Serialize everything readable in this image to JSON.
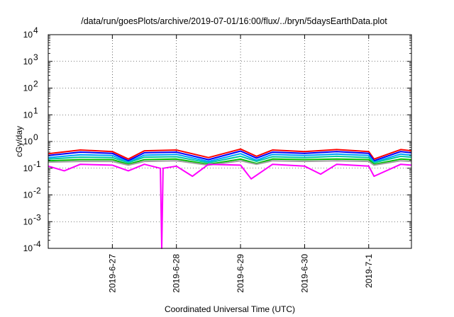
{
  "chart_data": {
    "type": "line",
    "title": "/data/run/goesPlots/archive/2019-07-01/16:00/flux/../bryn/5daysEarthData.plot",
    "xlabel": "Coordinated Universal Time (UTC)",
    "ylabel": "cGy/day",
    "yscale": "log",
    "ylim": [
      0.0001,
      10000
    ],
    "y_ticks": [
      {
        "base": "10",
        "exp": "4"
      },
      {
        "base": "10",
        "exp": "3"
      },
      {
        "base": "10",
        "exp": "2"
      },
      {
        "base": "10",
        "exp": "1"
      },
      {
        "base": "10",
        "exp": "0"
      },
      {
        "base": "10",
        "exp": "-1"
      },
      {
        "base": "10",
        "exp": "-2"
      },
      {
        "base": "10",
        "exp": "-3"
      },
      {
        "base": "10",
        "exp": "-4"
      }
    ],
    "xlim": [
      "2019-06-26T00:00",
      "2019-07-01T16:00"
    ],
    "x_ticks": [
      "2019-6-27",
      "2019-6-28",
      "2019-6-29",
      "2019-6-30",
      "2019-7-1"
    ],
    "grid": true,
    "legend": "none",
    "series_colors": [
      "#ff0000",
      "#0000ff",
      "#00a0ff",
      "#00c8a0",
      "#00c000",
      "#a0a0a0",
      "#ff00ff"
    ],
    "series": [
      {
        "color": "#ff0000",
        "x": [
          "2019-06-26T00:00",
          "2019-06-26T12:00",
          "2019-06-27T00:00",
          "2019-06-27T06:00",
          "2019-06-27T12:00",
          "2019-06-28T00:00",
          "2019-06-28T12:00",
          "2019-06-29T00:00",
          "2019-06-29T06:00",
          "2019-06-29T12:00",
          "2019-06-30T00:00",
          "2019-06-30T12:00",
          "2019-07-01T00:00",
          "2019-07-01T02:00",
          "2019-07-01T12:00",
          "2019-07-01T16:00"
        ],
        "y": [
          0.35,
          0.48,
          0.42,
          0.22,
          0.45,
          0.48,
          0.25,
          0.52,
          0.28,
          0.48,
          0.42,
          0.5,
          0.42,
          0.22,
          0.5,
          0.45
        ]
      },
      {
        "color": "#0000ff",
        "x": [
          "2019-06-26T00:00",
          "2019-06-26T12:00",
          "2019-06-27T00:00",
          "2019-06-27T06:00",
          "2019-06-27T12:00",
          "2019-06-28T00:00",
          "2019-06-28T12:00",
          "2019-06-29T00:00",
          "2019-06-29T06:00",
          "2019-06-29T12:00",
          "2019-06-30T00:00",
          "2019-06-30T12:00",
          "2019-07-01T00:00",
          "2019-07-01T02:00",
          "2019-07-01T12:00",
          "2019-07-01T16:00"
        ],
        "y": [
          0.3,
          0.4,
          0.36,
          0.19,
          0.38,
          0.4,
          0.21,
          0.44,
          0.24,
          0.4,
          0.36,
          0.42,
          0.36,
          0.19,
          0.42,
          0.38
        ]
      },
      {
        "color": "#00a0ff",
        "x": [
          "2019-06-26T00:00",
          "2019-06-26T12:00",
          "2019-06-27T00:00",
          "2019-06-27T06:00",
          "2019-06-27T12:00",
          "2019-06-28T00:00",
          "2019-06-28T12:00",
          "2019-06-29T00:00",
          "2019-06-29T06:00",
          "2019-06-29T12:00",
          "2019-06-30T00:00",
          "2019-06-30T12:00",
          "2019-07-01T00:00",
          "2019-07-01T02:00",
          "2019-07-01T12:00",
          "2019-07-01T16:00"
        ],
        "y": [
          0.25,
          0.32,
          0.3,
          0.17,
          0.31,
          0.33,
          0.18,
          0.35,
          0.2,
          0.33,
          0.3,
          0.34,
          0.3,
          0.17,
          0.34,
          0.31
        ]
      },
      {
        "color": "#00c8a0",
        "x": [
          "2019-06-26T00:00",
          "2019-06-26T12:00",
          "2019-06-27T00:00",
          "2019-06-27T06:00",
          "2019-06-27T12:00",
          "2019-06-28T00:00",
          "2019-06-28T12:00",
          "2019-06-29T00:00",
          "2019-06-29T06:00",
          "2019-06-29T12:00",
          "2019-06-30T00:00",
          "2019-06-30T12:00",
          "2019-07-01T00:00",
          "2019-07-01T02:00",
          "2019-07-01T12:00",
          "2019-07-01T16:00"
        ],
        "y": [
          0.22,
          0.26,
          0.25,
          0.16,
          0.26,
          0.27,
          0.16,
          0.28,
          0.18,
          0.27,
          0.25,
          0.28,
          0.25,
          0.16,
          0.28,
          0.26
        ]
      },
      {
        "color": "#00c000",
        "x": [
          "2019-06-26T00:00",
          "2019-06-26T12:00",
          "2019-06-27T00:00",
          "2019-06-27T06:00",
          "2019-06-27T12:00",
          "2019-06-28T00:00",
          "2019-06-28T12:00",
          "2019-06-29T00:00",
          "2019-06-29T06:00",
          "2019-06-29T12:00",
          "2019-06-30T00:00",
          "2019-06-30T12:00",
          "2019-07-01T00:00",
          "2019-07-01T02:00",
          "2019-07-01T12:00",
          "2019-07-01T16:00"
        ],
        "y": [
          0.19,
          0.21,
          0.21,
          0.14,
          0.21,
          0.22,
          0.14,
          0.22,
          0.15,
          0.22,
          0.21,
          0.22,
          0.21,
          0.14,
          0.22,
          0.21
        ]
      },
      {
        "color": "#a0a0a0",
        "x": [
          "2019-06-26T00:00",
          "2019-06-26T12:00",
          "2019-06-27T00:00",
          "2019-06-27T06:00",
          "2019-06-27T12:00",
          "2019-06-28T00:00",
          "2019-06-28T12:00",
          "2019-06-29T00:00",
          "2019-06-29T06:00",
          "2019-06-29T12:00",
          "2019-06-30T00:00",
          "2019-06-30T12:00",
          "2019-07-01T00:00",
          "2019-07-01T02:00",
          "2019-07-01T12:00",
          "2019-07-01T16:00"
        ],
        "y": [
          0.17,
          0.18,
          0.18,
          0.13,
          0.18,
          0.19,
          0.13,
          0.19,
          0.14,
          0.19,
          0.18,
          0.19,
          0.18,
          0.13,
          0.19,
          0.18
        ]
      },
      {
        "color": "#ff00ff",
        "x": [
          "2019-06-26T00:00",
          "2019-06-26T06:00",
          "2019-06-26T12:00",
          "2019-06-27T00:00",
          "2019-06-27T06:00",
          "2019-06-27T12:00",
          "2019-06-27T18:00",
          "2019-06-27T18:30",
          "2019-06-27T19:00",
          "2019-06-28T00:00",
          "2019-06-28T06:00",
          "2019-06-28T12:00",
          "2019-06-29T00:00",
          "2019-06-29T04:00",
          "2019-06-29T12:00",
          "2019-06-30T00:00",
          "2019-06-30T06:00",
          "2019-06-30T12:00",
          "2019-07-01T00:00",
          "2019-07-01T02:00",
          "2019-07-01T12:00",
          "2019-07-01T16:00"
        ],
        "y": [
          0.12,
          0.08,
          0.14,
          0.13,
          0.08,
          0.14,
          0.1,
          0.0001,
          0.1,
          0.12,
          0.05,
          0.14,
          0.13,
          0.04,
          0.14,
          0.12,
          0.06,
          0.14,
          0.12,
          0.05,
          0.14,
          0.13
        ]
      }
    ]
  }
}
